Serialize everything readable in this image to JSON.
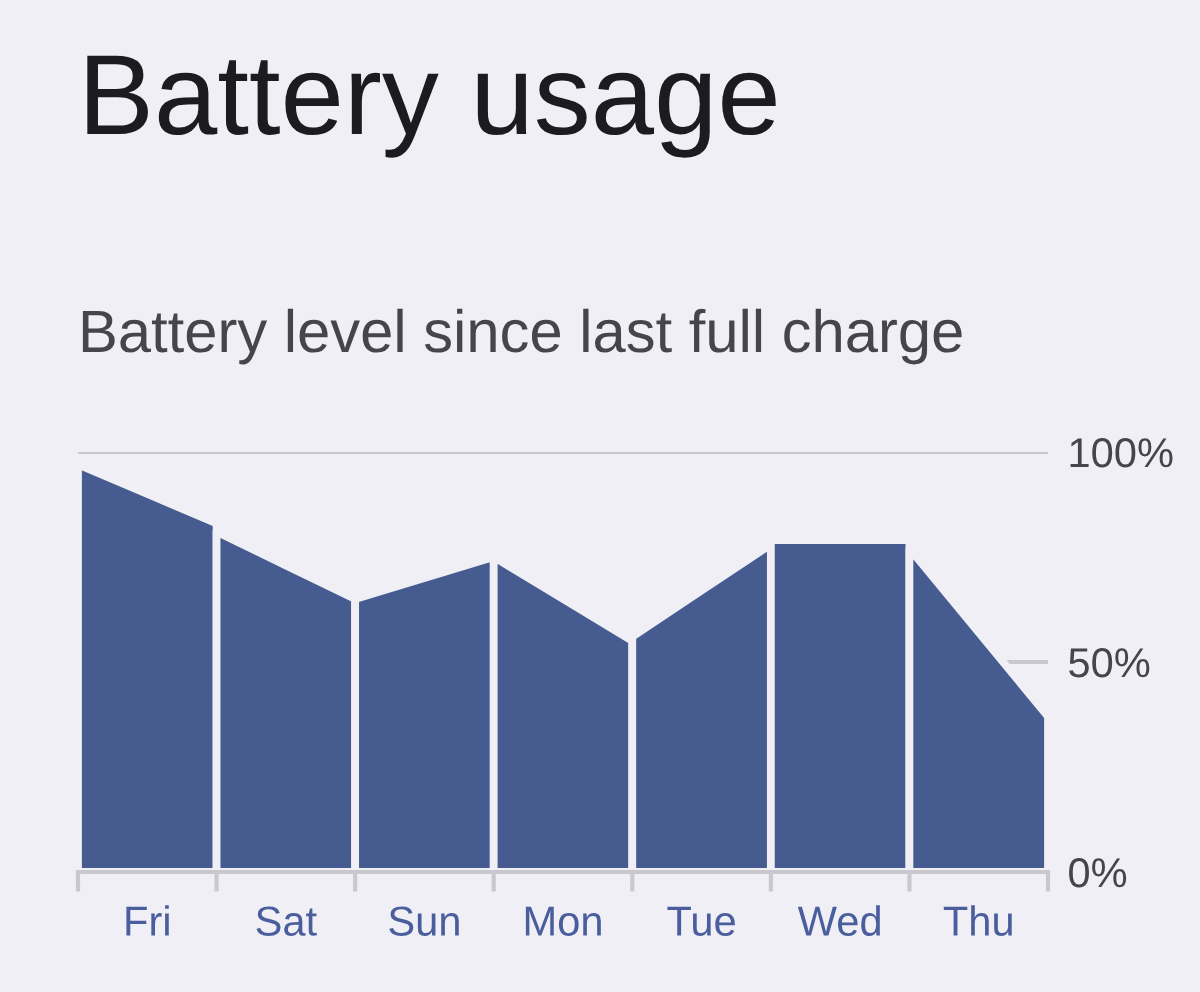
{
  "chart_data": {
    "type": "area",
    "title": "Battery usage",
    "subtitle": "Battery level since last full charge",
    "categories": [
      null,
      "Fri",
      null,
      "Sat",
      null,
      "Sun",
      null,
      "Mon",
      null,
      "Tue",
      null,
      "Wed",
      null,
      "Thu",
      null
    ],
    "ylim": [
      0,
      100
    ],
    "yticks": [
      {
        "value": 0,
        "label": "0%"
      },
      {
        "value": 50,
        "label": "50%"
      },
      {
        "value": 100,
        "label": "100%"
      }
    ],
    "grid": "y",
    "series": [
      {
        "values": [
          97,
          90,
          83,
          null,
          null,
          null,
          null,
          null,
          null,
          null,
          null,
          null,
          null,
          null,
          null
        ],
        "color": "#465b8f"
      },
      {
        "values": [
          null,
          null,
          81,
          73,
          65,
          null,
          null,
          null,
          null,
          null,
          null,
          null,
          null,
          null,
          null
        ],
        "color": "#465b8f"
      },
      {
        "values": [
          null,
          null,
          null,
          null,
          65,
          70,
          75,
          null,
          null,
          null,
          null,
          null,
          null,
          null,
          null
        ],
        "color": "#465b8f"
      },
      {
        "values": [
          null,
          null,
          null,
          null,
          null,
          null,
          75,
          65,
          55,
          null,
          null,
          null,
          null,
          null,
          null
        ],
        "color": "#465b8f"
      },
      {
        "values": [
          null,
          null,
          null,
          null,
          null,
          null,
          null,
          null,
          56,
          67,
          78,
          null,
          null,
          null,
          null
        ],
        "color": "#465b8f"
      },
      {
        "values": [
          null,
          null,
          null,
          null,
          null,
          null,
          null,
          null,
          null,
          null,
          79,
          79,
          79,
          null,
          null
        ],
        "color": "#465b8f"
      },
      {
        "values": [
          null,
          null,
          null,
          null,
          null,
          null,
          null,
          null,
          null,
          null,
          null,
          null,
          77,
          57,
          37
        ],
        "color": "#465b8f"
      }
    ]
  }
}
